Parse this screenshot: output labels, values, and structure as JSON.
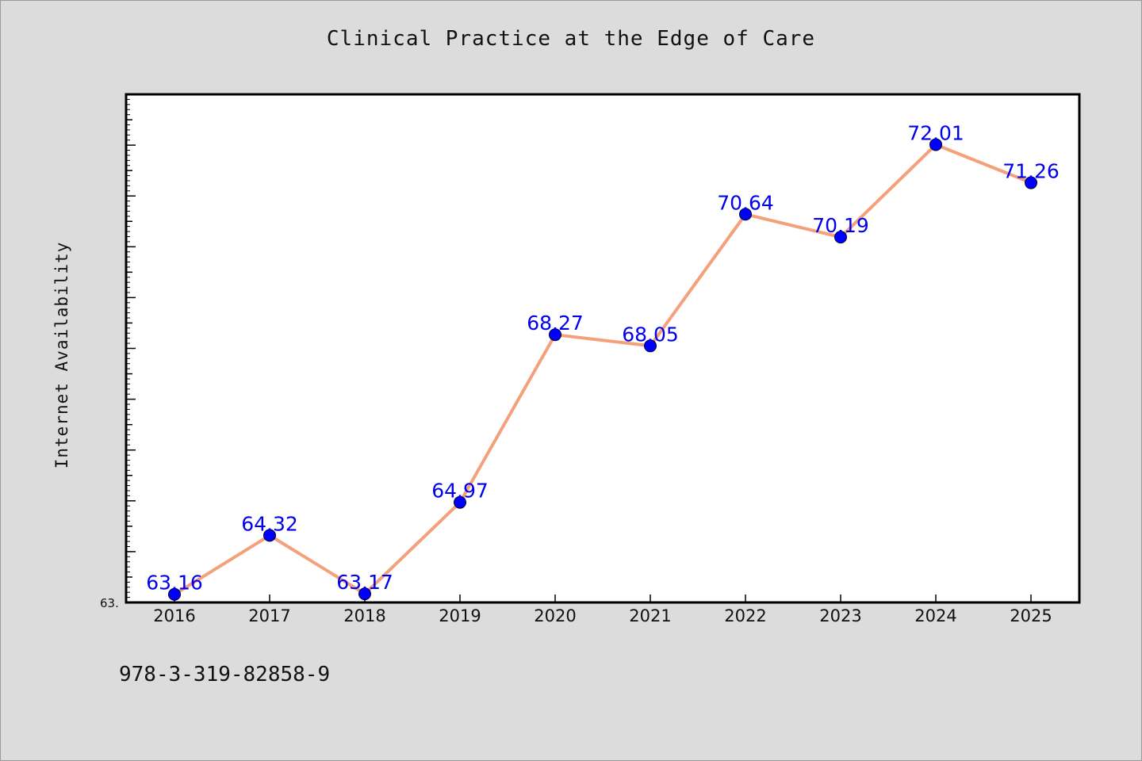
{
  "chart_data": {
    "type": "line",
    "title": "Clinical Practice at the Edge of Care",
    "xlabel": "",
    "ylabel": "Internet Availability",
    "categories": [
      "2016",
      "2017",
      "2018",
      "2019",
      "2020",
      "2021",
      "2022",
      "2023",
      "2024",
      "2025"
    ],
    "series": [
      {
        "values": [
          63.16,
          64.32,
          63.17,
          64.97,
          68.27,
          68.05,
          70.64,
          70.19,
          72.01,
          71.26
        ],
        "data_labels": [
          "63.16",
          "64.32",
          "63.17",
          "64.97",
          "68.27",
          "68.05",
          "70.64",
          "70.19",
          "72.01",
          "71.26"
        ]
      }
    ],
    "ylim": [
      63.0,
      73.0
    ],
    "y_tick_label": "63.",
    "grid": false,
    "legend": "none",
    "colors": {
      "line": "#f4a07a",
      "marker": "#0000ff",
      "data_label": "#0000ee",
      "plot_background": "#ffffff",
      "figure_background": "#dcdcdc"
    }
  },
  "footer": {
    "isbn": "978-3-319-82858-9"
  }
}
